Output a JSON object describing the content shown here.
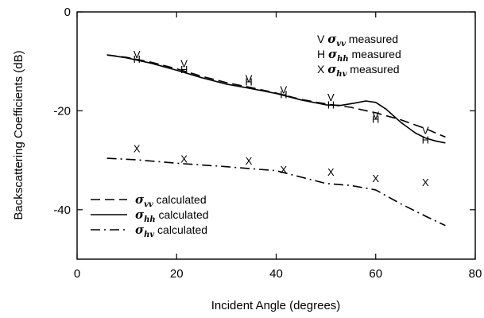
{
  "chart_data": {
    "type": "line",
    "xlabel": "Incident Angle (degrees)",
    "ylabel": "Backscattering Coefficients (dB)",
    "xlim": [
      0,
      80
    ],
    "ylim": [
      -50,
      0
    ],
    "xticks": [
      "0",
      "20",
      "40",
      "60",
      "80"
    ],
    "yticks": [
      "0",
      "-20",
      "-40"
    ],
    "grid": false,
    "calculated_series": [
      {
        "name": "calculated",
        "symbol": "σ",
        "subscript": "vv",
        "style": "dashed",
        "x": [
          6,
          10,
          15,
          20,
          25,
          30,
          35,
          40,
          45,
          50,
          55,
          60,
          65,
          70,
          74
        ],
        "y": [
          -8.7,
          -9.2,
          -10.2,
          -11.5,
          -13.0,
          -14.3,
          -15.3,
          -16.4,
          -17.7,
          -18.6,
          -19.3,
          -20.4,
          -21.8,
          -23.6,
          -25.3
        ]
      },
      {
        "name": "calculated",
        "symbol": "σ",
        "subscript": "hh",
        "style": "solid",
        "x": [
          6,
          10,
          15,
          20,
          25,
          30,
          35,
          40,
          45,
          50,
          53,
          56,
          58,
          60,
          62,
          65,
          68,
          70,
          72,
          74
        ],
        "y": [
          -8.7,
          -9.3,
          -10.4,
          -11.8,
          -13.3,
          -14.6,
          -15.5,
          -16.5,
          -17.8,
          -18.8,
          -18.9,
          -18.4,
          -18.0,
          -18.3,
          -19.6,
          -22.3,
          -24.5,
          -25.5,
          -26.1,
          -26.5
        ]
      },
      {
        "name": "calculated",
        "symbol": "σ",
        "subscript": "hv",
        "style": "dashdot",
        "x": [
          6,
          12,
          20,
          30,
          40,
          50,
          55,
          60,
          65,
          70,
          74
        ],
        "y": [
          -29.6,
          -29.9,
          -30.6,
          -31.3,
          -32.1,
          -34.7,
          -35.1,
          -36.0,
          -38.8,
          -41.3,
          -43.2
        ]
      }
    ],
    "measured_series": [
      {
        "marker": "V",
        "symbol": "σ",
        "subscript": "vv",
        "name": "measured",
        "x": [
          12,
          21.5,
          34.5,
          41.5,
          51,
          60,
          70
        ],
        "y": [
          -8.5,
          -10.4,
          -13.4,
          -15.7,
          -17.2,
          -20.8,
          -23.9
        ]
      },
      {
        "marker": "H",
        "symbol": "σ",
        "subscript": "hh",
        "name": "measured",
        "x": [
          12,
          21.5,
          34.5,
          41.5,
          51,
          60,
          70
        ],
        "y": [
          -9.5,
          -11.6,
          -14.1,
          -16.6,
          -18.7,
          -21.6,
          -25.8
        ]
      },
      {
        "marker": "X",
        "symbol": "σ",
        "subscript": "hv",
        "name": "measured",
        "x": [
          12,
          21.5,
          34.5,
          41.5,
          51,
          60,
          70
        ],
        "y": [
          -27.6,
          -29.7,
          -30.1,
          -31.8,
          -32.3,
          -33.6,
          -34.4
        ]
      }
    ]
  }
}
